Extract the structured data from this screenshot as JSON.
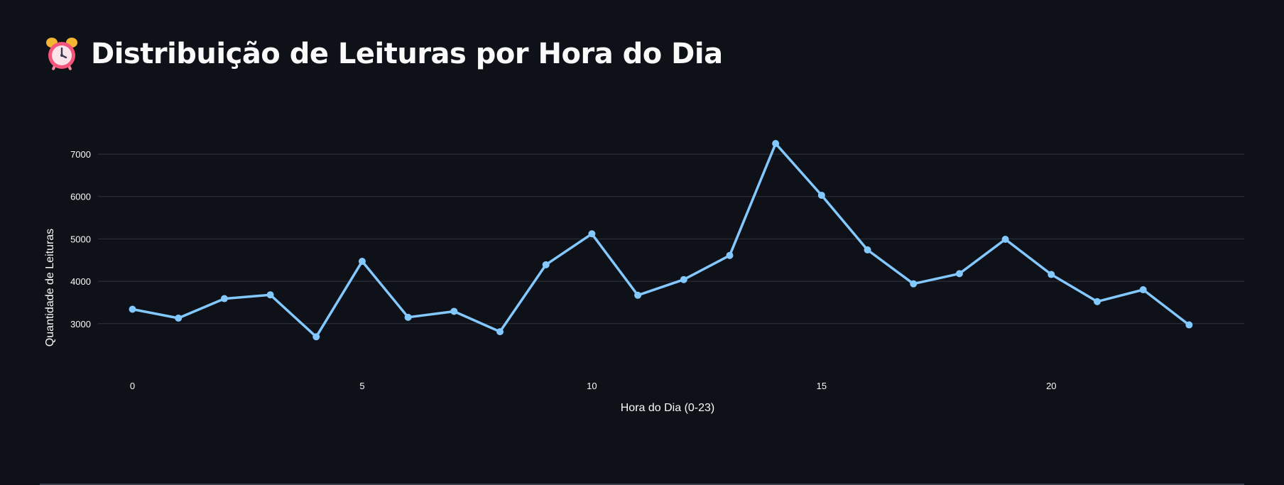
{
  "header": {
    "title": "Distribuição de Leituras por Hora do Dia",
    "icon": "alarm-clock-icon"
  },
  "colors": {
    "background": "#0e1117",
    "line": "#83c9ff",
    "grid": "#31333f",
    "text": "#fafafa"
  },
  "chart_data": {
    "type": "line",
    "title": "",
    "xlabel": "Hora do Dia (0-23)",
    "ylabel": "Quantidade de Leituras",
    "x": [
      0,
      1,
      2,
      3,
      4,
      5,
      6,
      7,
      8,
      9,
      10,
      11,
      12,
      13,
      14,
      15,
      16,
      17,
      18,
      19,
      20,
      21,
      22,
      23
    ],
    "series": [
      {
        "values": [
          3340,
          3130,
          3590,
          3680,
          2690,
          4470,
          3150,
          3290,
          2810,
          4390,
          5120,
          3670,
          4040,
          4610,
          7250,
          6030,
          4740,
          3940,
          4180,
          4990,
          4160,
          3520,
          3800,
          2970
        ]
      }
    ],
    "xlim": [
      -0.75,
      24.2
    ],
    "ylim": [
      2175,
      7705
    ],
    "xticks": [
      0,
      5,
      10,
      15,
      20
    ],
    "yticks": [
      3000,
      4000,
      5000,
      6000,
      7000
    ],
    "xtick_labels": [
      "0",
      "5",
      "10",
      "15",
      "20"
    ],
    "ytick_labels": [
      "3000",
      "4000",
      "5000",
      "6000",
      "7000"
    ],
    "grid": "horizontal",
    "legend": "none",
    "markers": true
  }
}
